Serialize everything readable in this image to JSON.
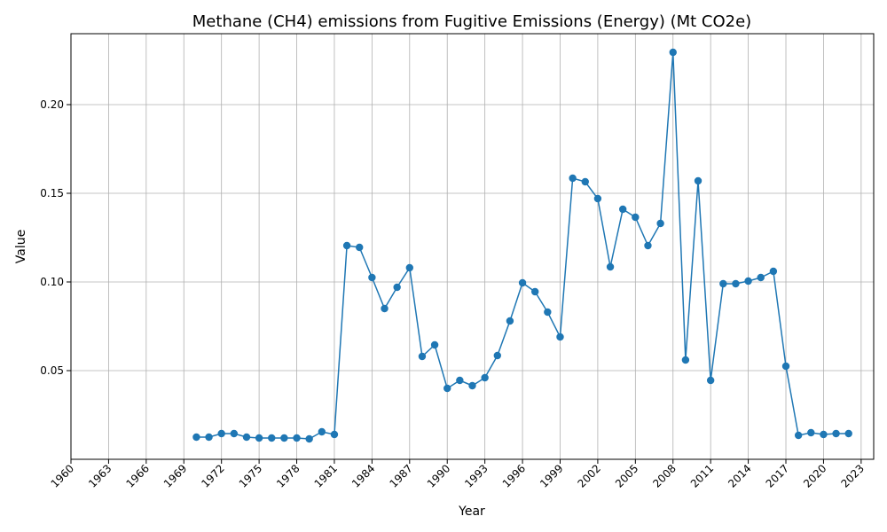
{
  "chart_data": {
    "type": "line",
    "title": "Methane (CH4) emissions from Fugitive Emissions (Energy) (Mt CO2e)",
    "xlabel": "Year",
    "ylabel": "Value",
    "xlim": [
      1960,
      2024
    ],
    "ylim": [
      0.0,
      0.24
    ],
    "x_ticks": [
      1960,
      1963,
      1966,
      1969,
      1972,
      1975,
      1978,
      1981,
      1984,
      1987,
      1990,
      1993,
      1996,
      1999,
      2002,
      2005,
      2008,
      2011,
      2014,
      2017,
      2020,
      2023
    ],
    "y_ticks": [
      0.05,
      0.1,
      0.15,
      0.2
    ],
    "y_tick_labels": [
      "0.05",
      "0.10",
      "0.15",
      "0.20"
    ],
    "grid": true,
    "color": "#1f77b4",
    "series": [
      {
        "x": [
          1970,
          1971,
          1972,
          1973,
          1974,
          1975,
          1976,
          1977,
          1978,
          1979,
          1980,
          1981,
          1982,
          1983,
          1984,
          1985,
          1986,
          1987,
          1988,
          1989,
          1990,
          1991,
          1992,
          1993,
          1994,
          1995,
          1996,
          1997,
          1998,
          1999,
          2000,
          2001,
          2002,
          2003,
          2004,
          2005,
          2006,
          2007,
          2008,
          2009,
          2010,
          2011,
          2012,
          2013,
          2014,
          2015,
          2016,
          2017,
          2018,
          2019,
          2020,
          2021,
          2022
        ],
        "values": [
          0.0125,
          0.0125,
          0.0145,
          0.0145,
          0.0125,
          0.012,
          0.012,
          0.012,
          0.012,
          0.0115,
          0.0155,
          0.014,
          0.1205,
          0.1195,
          0.1025,
          0.085,
          0.097,
          0.108,
          0.058,
          0.0645,
          0.04,
          0.0445,
          0.0415,
          0.046,
          0.0585,
          0.078,
          0.0995,
          0.0945,
          0.083,
          0.069,
          0.1585,
          0.1565,
          0.147,
          0.1085,
          0.141,
          0.1365,
          0.1205,
          0.133,
          0.2295,
          0.056,
          0.157,
          0.0445,
          0.099,
          0.099,
          0.1005,
          0.1025,
          0.106,
          0.0525,
          0.0135,
          0.015,
          0.014,
          0.0145,
          0.0145
        ]
      }
    ]
  }
}
